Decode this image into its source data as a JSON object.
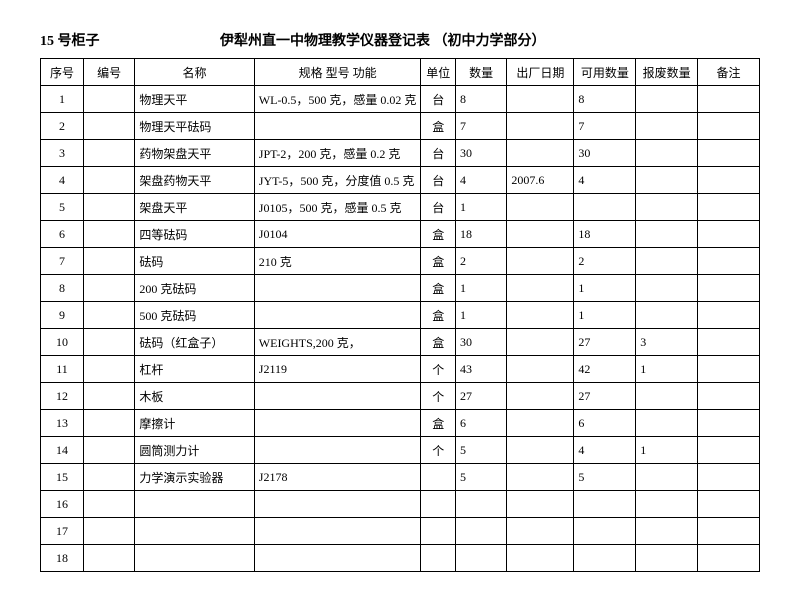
{
  "header": {
    "cabinet": "15 号柜子",
    "title": "伊犁州直一中物理教学仪器登记表 （初中力学部分）"
  },
  "columns": {
    "seq": "序号",
    "code": "编号",
    "name": "名称",
    "spec": "规格  型号  功能",
    "unit": "单位",
    "qty": "数量",
    "date": "出厂日期",
    "avail": "可用数量",
    "scrap": "报废数量",
    "note": "备注"
  },
  "rows": [
    {
      "seq": "1",
      "code": "",
      "name": "物理天平",
      "spec": "WL-0.5，500 克，感量 0.02 克",
      "unit": "台",
      "qty": "8",
      "date": "",
      "avail": "8",
      "scrap": "",
      "note": ""
    },
    {
      "seq": "2",
      "code": "",
      "name": "物理天平砝码",
      "spec": "",
      "unit": "盒",
      "qty": "7",
      "date": "",
      "avail": "7",
      "scrap": "",
      "note": ""
    },
    {
      "seq": "3",
      "code": "",
      "name": "药物架盘天平",
      "spec": "JPT-2，200 克，感量 0.2 克",
      "unit": "台",
      "qty": "30",
      "date": "",
      "avail": "30",
      "scrap": "",
      "note": ""
    },
    {
      "seq": "4",
      "code": "",
      "name": "架盘药物天平",
      "spec": "JYT-5，500 克，分度值 0.5 克",
      "unit": "台",
      "qty": "4",
      "date": "2007.6",
      "avail": "4",
      "scrap": "",
      "note": ""
    },
    {
      "seq": "5",
      "code": "",
      "name": "架盘天平",
      "spec": "J0105，500 克，感量 0.5 克",
      "unit": "台",
      "qty": "1",
      "date": "",
      "avail": "",
      "scrap": "",
      "note": ""
    },
    {
      "seq": "6",
      "code": "",
      "name": "四等砝码",
      "spec": "J0104",
      "unit": "盒",
      "qty": "18",
      "date": "",
      "avail": "18",
      "scrap": "",
      "note": ""
    },
    {
      "seq": "7",
      "code": "",
      "name": "砝码",
      "spec": "210 克",
      "unit": "盒",
      "qty": "2",
      "date": "",
      "avail": "2",
      "scrap": "",
      "note": ""
    },
    {
      "seq": "8",
      "code": "",
      "name": "200 克砝码",
      "spec": "",
      "unit": "盒",
      "qty": "1",
      "date": "",
      "avail": "1",
      "scrap": "",
      "note": ""
    },
    {
      "seq": "9",
      "code": "",
      "name": "500 克砝码",
      "spec": "",
      "unit": "盒",
      "qty": "1",
      "date": "",
      "avail": "1",
      "scrap": "",
      "note": ""
    },
    {
      "seq": "10",
      "code": "",
      "name": "砝码（红盒子）",
      "spec": "WEIGHTS,200 克，",
      "unit": "盒",
      "qty": "30",
      "date": "",
      "avail": "27",
      "scrap": "3",
      "note": ""
    },
    {
      "seq": "11",
      "code": "",
      "name": "杠杆",
      "spec": "J2119",
      "unit": "个",
      "qty": "43",
      "date": "",
      "avail": "42",
      "scrap": "1",
      "note": ""
    },
    {
      "seq": "12",
      "code": "",
      "name": "木板",
      "spec": "",
      "unit": "个",
      "qty": "27",
      "date": "",
      "avail": "27",
      "scrap": "",
      "note": ""
    },
    {
      "seq": "13",
      "code": "",
      "name": "摩擦计",
      "spec": "",
      "unit": "盒",
      "qty": "6",
      "date": "",
      "avail": "6",
      "scrap": "",
      "note": ""
    },
    {
      "seq": "14",
      "code": "",
      "name": "圆筒测力计",
      "spec": "",
      "unit": "个",
      "qty": "5",
      "date": "",
      "avail": "4",
      "scrap": "1",
      "note": ""
    },
    {
      "seq": "15",
      "code": "",
      "name": "力学演示实验器",
      "spec": "J2178",
      "unit": "",
      "qty": "5",
      "date": "",
      "avail": "5",
      "scrap": "",
      "note": ""
    },
    {
      "seq": "16",
      "code": "",
      "name": "",
      "spec": "",
      "unit": "",
      "qty": "",
      "date": "",
      "avail": "",
      "scrap": "",
      "note": ""
    },
    {
      "seq": "17",
      "code": "",
      "name": "",
      "spec": "",
      "unit": "",
      "qty": "",
      "date": "",
      "avail": "",
      "scrap": "",
      "note": ""
    },
    {
      "seq": "18",
      "code": "",
      "name": "",
      "spec": "",
      "unit": "",
      "qty": "",
      "date": "",
      "avail": "",
      "scrap": "",
      "note": ""
    }
  ]
}
